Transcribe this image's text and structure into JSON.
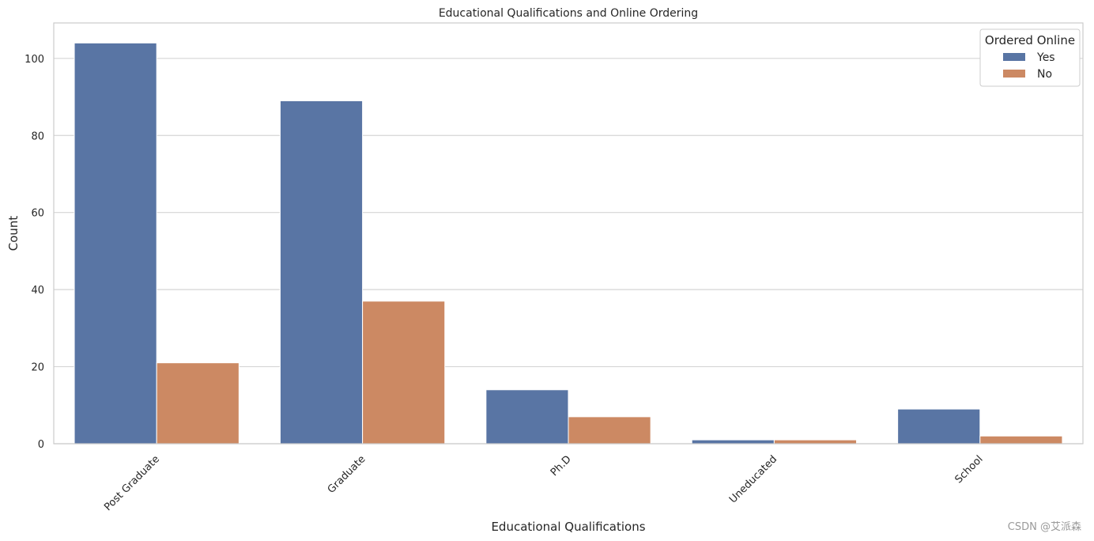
{
  "chart_data": {
    "type": "bar",
    "title": "Educational Qualifications and Online Ordering",
    "xlabel": "Educational Qualifications",
    "ylabel": "Count",
    "categories": [
      "Post Graduate",
      "Graduate",
      "Ph.D",
      "Uneducated",
      "School"
    ],
    "series": [
      {
        "name": "Yes",
        "values": [
          104,
          89,
          14,
          1,
          9
        ],
        "color": "#5975a4"
      },
      {
        "name": "No",
        "values": [
          21,
          37,
          7,
          1,
          2
        ],
        "color": "#cc8963"
      }
    ],
    "ylim": [
      0,
      109.2
    ],
    "yticks": [
      0,
      20,
      40,
      60,
      80,
      100
    ],
    "grid": true,
    "legend": {
      "title": "Ordered Online",
      "placement": "top-right"
    }
  },
  "watermark": "CSDN @艾派森"
}
